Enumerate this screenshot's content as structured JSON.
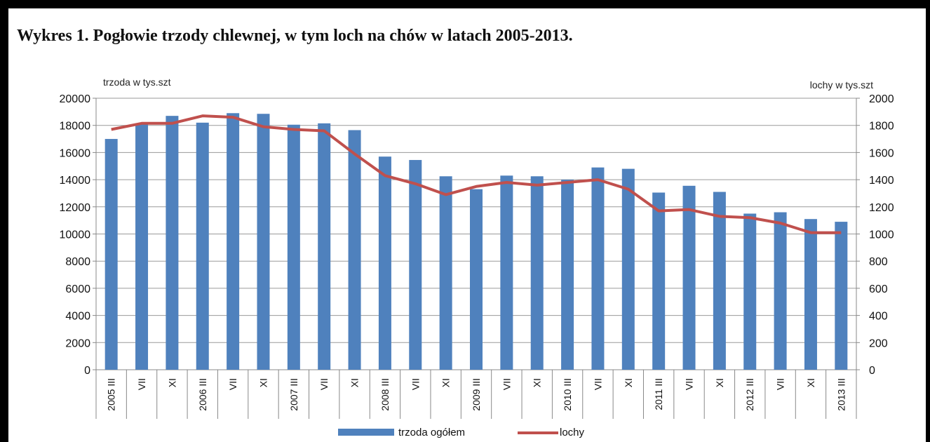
{
  "chart_data": {
    "type": "bar",
    "title": "Wykres 1. Pogłowie trzody chlewnej, w tym  loch na chów w latach 2005-2013.",
    "ylabel_left": "trzoda w tys.szt",
    "ylabel_right": "lochy w tys.szt",
    "ylim_left": [
      0,
      20000
    ],
    "ylim_right": [
      0,
      2000
    ],
    "yticks_left": [
      "20000",
      "18000",
      "16000",
      "14000",
      "12000",
      "10000",
      "8000",
      "6000",
      "4000",
      "2000",
      "0"
    ],
    "yticks_right": [
      "2000",
      "1800",
      "1600",
      "1400",
      "1200",
      "1000",
      "800",
      "600",
      "400",
      "200",
      "0"
    ],
    "grid": true,
    "legend_position": "bottom",
    "categories": [
      "2005 III",
      "VII",
      "XI",
      "2006 III",
      "VII",
      "XI",
      "2007 III",
      "VII",
      "XI",
      "2008 III",
      "VII",
      "XI",
      "2009 III",
      "VII",
      "XI",
      "2010 III",
      "VII",
      "XI",
      "2011 III",
      "VII",
      "XI",
      "2012 III",
      "VII",
      "XI",
      "2013 III"
    ],
    "series": [
      {
        "name": "trzoda ogółem",
        "type": "bar",
        "axis": "left",
        "color": "#4f81bd",
        "values": [
          17000,
          18100,
          18700,
          18200,
          18900,
          18850,
          18050,
          18150,
          17650,
          15700,
          15450,
          14250,
          13300,
          14300,
          14250,
          14000,
          14900,
          14800,
          13050,
          13550,
          13100,
          11500,
          11600,
          11100,
          10900
        ]
      },
      {
        "name": "lochy",
        "type": "line",
        "axis": "right",
        "color": "#c0504d",
        "values": [
          1770,
          1815,
          1815,
          1870,
          1860,
          1790,
          1770,
          1760,
          1590,
          1430,
          1370,
          1290,
          1350,
          1380,
          1360,
          1380,
          1400,
          1330,
          1170,
          1180,
          1130,
          1120,
          1080,
          1010,
          1010
        ]
      }
    ]
  }
}
